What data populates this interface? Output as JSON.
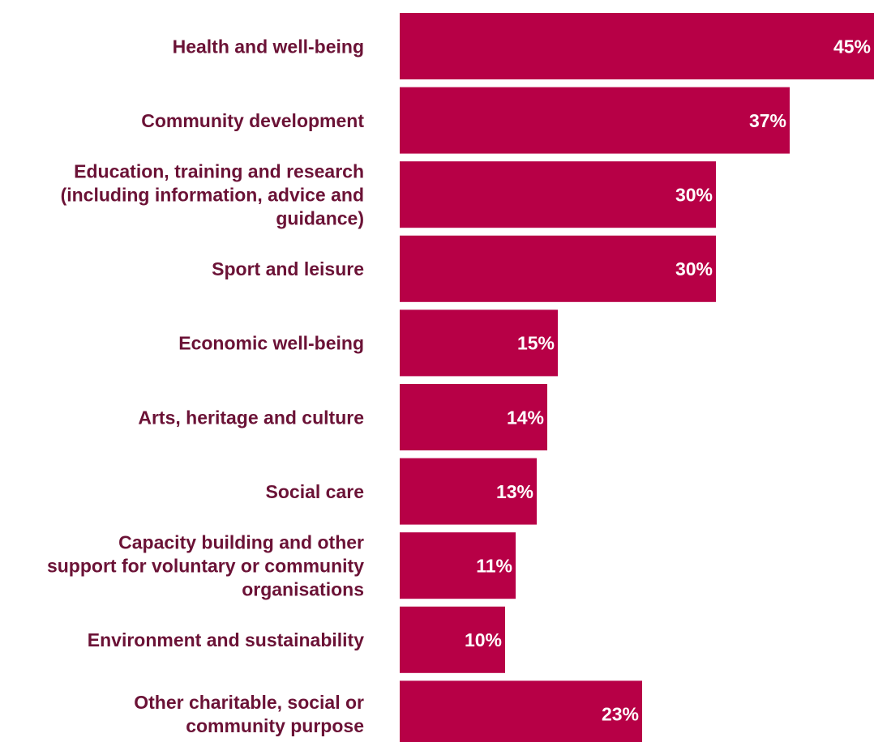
{
  "chart_data": {
    "type": "bar",
    "orientation": "horizontal",
    "categories": [
      "Health and well-being",
      "Community development",
      "Education, training and research (including information, advice and guidance)",
      "Sport and leisure",
      "Economic well-being",
      "Arts, heritage and culture",
      "Social care",
      "Capacity building and other support for voluntary or community organisations",
      "Environment and sustainability",
      "Other charitable, social or community purpose"
    ],
    "category_lines": [
      [
        "Health and well-being"
      ],
      [
        "Community development"
      ],
      [
        "Education, training and research",
        "(including information, advice and",
        "guidance)"
      ],
      [
        "Sport and leisure"
      ],
      [
        "Economic well-being"
      ],
      [
        "Arts, heritage and culture"
      ],
      [
        "Social care"
      ],
      [
        "Capacity building and other",
        "support for voluntary or community",
        "organisations"
      ],
      [
        "Environment and sustainability"
      ],
      [
        "Other charitable, social or",
        "community purpose"
      ]
    ],
    "values": [
      45,
      37,
      30,
      30,
      15,
      14,
      13,
      11,
      10,
      23
    ],
    "value_labels": [
      "45%",
      "37%",
      "30%",
      "30%",
      "15%",
      "14%",
      "13%",
      "11%",
      "10%",
      "23%"
    ],
    "unit": "%",
    "xlim": [
      0,
      45
    ],
    "grid": false,
    "legend": "none",
    "title": "",
    "xlabel": "",
    "ylabel": "",
    "colors": {
      "bar": "#b70046",
      "category_text": "#6b1236",
      "value_text": "#ffffff"
    }
  }
}
